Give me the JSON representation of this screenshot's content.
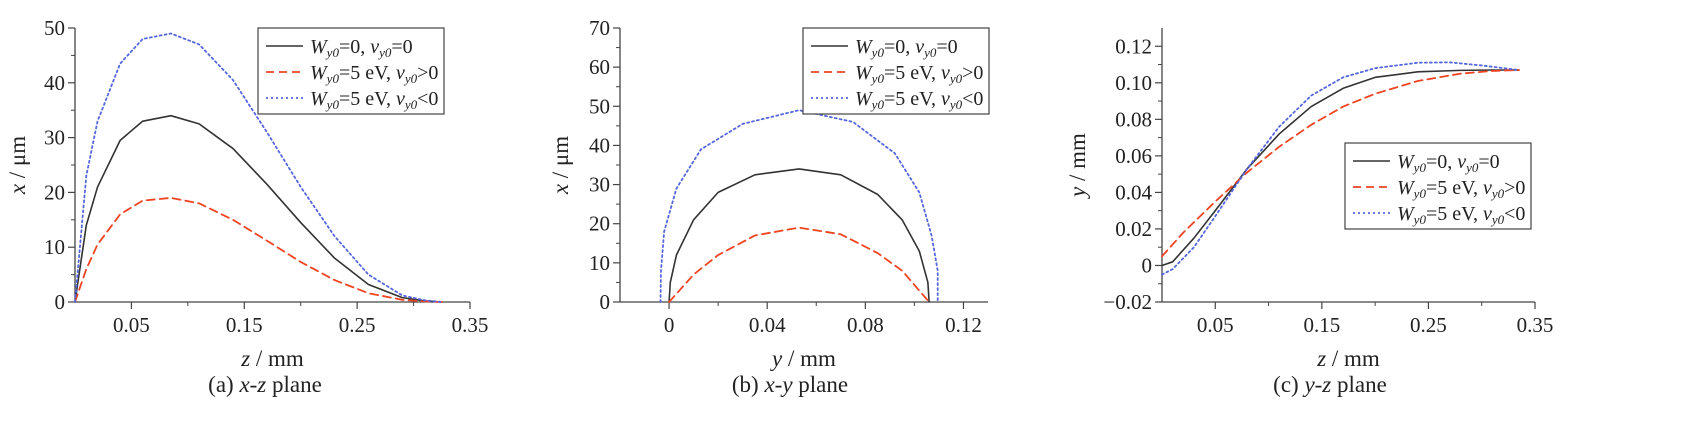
{
  "chart_data": [
    {
      "type": "line",
      "caption_prefix": "(a) ",
      "caption_em": "x-z",
      "caption_suffix": " plane",
      "xlabel_var": "z",
      "xlabel_unit": " / mm",
      "ylabel_var": "x",
      "ylabel_unit": " / μm",
      "xlim": [
        0,
        0.35
      ],
      "ylim": [
        0,
        50
      ],
      "xticks": [
        "0.05",
        "0.15",
        "0.25",
        "0.35"
      ],
      "xtick_values": [
        0.05,
        0.15,
        0.25,
        0.35
      ],
      "yticks": [
        "0",
        "10",
        "20",
        "30",
        "40",
        "50"
      ],
      "ytick_values": [
        0,
        10,
        20,
        30,
        40,
        50
      ],
      "legend_position": "top-right",
      "series": [
        {
          "name": "W_y0=0, v_y0=0",
          "color": "#333333",
          "style": "solid",
          "x": [
            0,
            0.01,
            0.02,
            0.04,
            0.06,
            0.085,
            0.11,
            0.14,
            0.17,
            0.2,
            0.23,
            0.26,
            0.29,
            0.31,
            0.325
          ],
          "y": [
            0,
            14,
            21,
            29.5,
            33,
            34,
            32.5,
            28,
            21.5,
            14.5,
            8,
            3.2,
            0.8,
            0.2,
            0
          ]
        },
        {
          "name": "W_y0=5 eV, v_y0>0",
          "color": "#ee4422",
          "style": "dashed",
          "x": [
            0,
            0.01,
            0.02,
            0.04,
            0.06,
            0.085,
            0.11,
            0.14,
            0.17,
            0.2,
            0.23,
            0.26,
            0.29,
            0.31,
            0.325
          ],
          "y": [
            0,
            6,
            10.5,
            16,
            18.5,
            19,
            18,
            15,
            11.2,
            7.3,
            4,
            1.6,
            0.4,
            0.1,
            0
          ]
        },
        {
          "name": "W_y0=5 eV, v_y0<0",
          "color": "#5566dd",
          "style": "dotted",
          "x": [
            0,
            0.01,
            0.02,
            0.04,
            0.06,
            0.085,
            0.11,
            0.14,
            0.17,
            0.2,
            0.23,
            0.26,
            0.29,
            0.31,
            0.325
          ],
          "y": [
            0,
            23,
            33,
            43.5,
            48,
            49,
            47,
            40.5,
            31,
            21,
            12,
            5,
            1.2,
            0.3,
            0
          ]
        }
      ]
    },
    {
      "type": "line",
      "caption_prefix": "(b) ",
      "caption_em": "x-y",
      "caption_suffix": " plane",
      "xlabel_var": "y",
      "xlabel_unit": " / mm",
      "ylabel_var": "x",
      "ylabel_unit": " / μm",
      "xlim": [
        -0.02,
        0.13
      ],
      "ylim": [
        0,
        70
      ],
      "xticks": [
        "0",
        "0.04",
        "0.08",
        "0.12"
      ],
      "xtick_values": [
        0,
        0.04,
        0.08,
        0.12
      ],
      "yticks": [
        "0",
        "10",
        "20",
        "30",
        "40",
        "50",
        "60",
        "70"
      ],
      "ytick_values": [
        0,
        10,
        20,
        30,
        40,
        50,
        60,
        70
      ],
      "legend_position": "top-right",
      "series": [
        {
          "name": "W_y0=0, v_y0=0",
          "color": "#333333",
          "style": "solid",
          "x": [
            0,
            0.0005,
            0.003,
            0.01,
            0.02,
            0.035,
            0.053,
            0.07,
            0.085,
            0.095,
            0.102,
            0.1055,
            0.106
          ],
          "y": [
            0,
            5,
            12,
            21,
            28,
            32.5,
            34,
            32.5,
            27.5,
            21,
            13,
            5,
            0
          ]
        },
        {
          "name": "W_y0=5 eV, v_y0>0",
          "color": "#ee4422",
          "style": "dashed",
          "x": [
            0,
            0.01,
            0.02,
            0.035,
            0.053,
            0.07,
            0.085,
            0.095,
            0.106
          ],
          "y": [
            0,
            7,
            12,
            17,
            19,
            17.3,
            12.5,
            8,
            0
          ]
        },
        {
          "name": "W_y0=5 eV, v_y0<0",
          "color": "#5566dd",
          "style": "dotted",
          "x": [
            -0.0035,
            -0.0033,
            -0.002,
            0.003,
            0.013,
            0.03,
            0.053,
            0.075,
            0.092,
            0.102,
            0.107,
            0.1095,
            0.1095
          ],
          "y": [
            0,
            8,
            18,
            29,
            39,
            45.5,
            49,
            46,
            38,
            28,
            17,
            8,
            0
          ]
        }
      ]
    },
    {
      "type": "line",
      "caption_prefix": "(c) ",
      "caption_em": "y-z",
      "caption_suffix": " plane",
      "xlabel_var": "z",
      "xlabel_unit": " / mm",
      "ylabel_var": "y",
      "ylabel_unit": " / mm",
      "xlim": [
        0,
        0.35
      ],
      "ylim": [
        -0.02,
        0.13
      ],
      "xticks": [
        "0.05",
        "0.15",
        "0.25",
        "0.35"
      ],
      "xtick_values": [
        0.05,
        0.15,
        0.25,
        0.35
      ],
      "yticks": [
        "−0.02",
        "0",
        "0.02",
        "0.04",
        "0.06",
        "0.08",
        "0.10",
        "0.12"
      ],
      "ytick_values": [
        -0.02,
        0,
        0.02,
        0.04,
        0.06,
        0.08,
        0.1,
        0.12
      ],
      "legend_position": "center-right",
      "series": [
        {
          "name": "W_y0=0, v_y0=0",
          "color": "#333333",
          "style": "solid",
          "x": [
            0,
            0.01,
            0.03,
            0.05,
            0.08,
            0.11,
            0.14,
            0.17,
            0.2,
            0.24,
            0.28,
            0.31,
            0.335
          ],
          "y": [
            0,
            0.002,
            0.015,
            0.03,
            0.053,
            0.072,
            0.087,
            0.097,
            0.103,
            0.106,
            0.1068,
            0.107,
            0.107
          ]
        },
        {
          "name": "W_y0=5 eV, v_y0>0",
          "color": "#ee4422",
          "style": "dashed",
          "x": [
            0,
            0.02,
            0.05,
            0.08,
            0.11,
            0.14,
            0.17,
            0.2,
            0.24,
            0.28,
            0.31,
            0.335
          ],
          "y": [
            0.005,
            0.018,
            0.035,
            0.051,
            0.065,
            0.077,
            0.087,
            0.094,
            0.101,
            0.105,
            0.1065,
            0.107
          ]
        },
        {
          "name": "W_y0=5 eV, v_y0<0",
          "color": "#5566dd",
          "style": "dotted",
          "x": [
            0,
            0.01,
            0.03,
            0.05,
            0.08,
            0.11,
            0.14,
            0.17,
            0.2,
            0.24,
            0.27,
            0.3,
            0.335
          ],
          "y": [
            -0.005,
            -0.002,
            0.01,
            0.027,
            0.053,
            0.076,
            0.093,
            0.103,
            0.108,
            0.111,
            0.1112,
            0.1095,
            0.107
          ]
        }
      ]
    }
  ],
  "legend_parts": [
    {
      "sub1": "y0",
      "mid": "=0, ",
      "sub2": "y0",
      "tail": "=0"
    },
    {
      "sub1": "y0",
      "mid": "=5 eV, ",
      "sub2": "y0",
      "tail": ">0"
    },
    {
      "sub1": "y0",
      "mid": "=5 eV, ",
      "sub2": "y0",
      "tail": "<0"
    }
  ],
  "legend_symbols": {
    "W": "W",
    "v": "v"
  }
}
